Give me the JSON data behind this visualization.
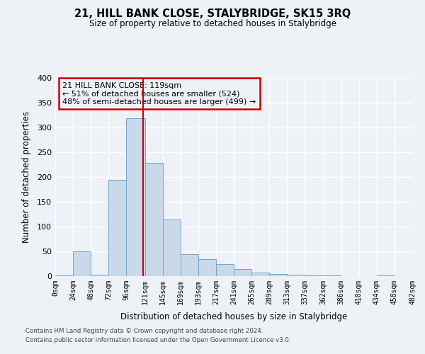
{
  "title": "21, HILL BANK CLOSE, STALYBRIDGE, SK15 3RQ",
  "subtitle": "Size of property relative to detached houses in Stalybridge",
  "xlabel": "Distribution of detached houses by size in Stalybridge",
  "ylabel": "Number of detached properties",
  "bin_edges": [
    0,
    24,
    48,
    72,
    96,
    121,
    145,
    169,
    193,
    217,
    241,
    265,
    289,
    313,
    337,
    362,
    386,
    410,
    434,
    458,
    482
  ],
  "bar_heights": [
    2,
    50,
    3,
    195,
    318,
    228,
    115,
    44,
    35,
    25,
    15,
    7,
    5,
    3,
    2,
    1,
    0,
    0,
    1,
    0
  ],
  "bar_color": "#c9d9ea",
  "bar_edge_color": "#6fa8cc",
  "vline_x": 119,
  "vline_color": "#cc0000",
  "ylim": [
    0,
    400
  ],
  "annotation_title": "21 HILL BANK CLOSE: 119sqm",
  "annotation_line1": "← 51% of detached houses are smaller (524)",
  "annotation_line2": "48% of semi-detached houses are larger (499) →",
  "annotation_box_color": "#cc0000",
  "footnote1": "Contains HM Land Registry data © Crown copyright and database right 2024.",
  "footnote2": "Contains public sector information licensed under the Open Government Licence v3.0.",
  "bg_color": "#eef2f7",
  "grid_color": "#ffffff"
}
